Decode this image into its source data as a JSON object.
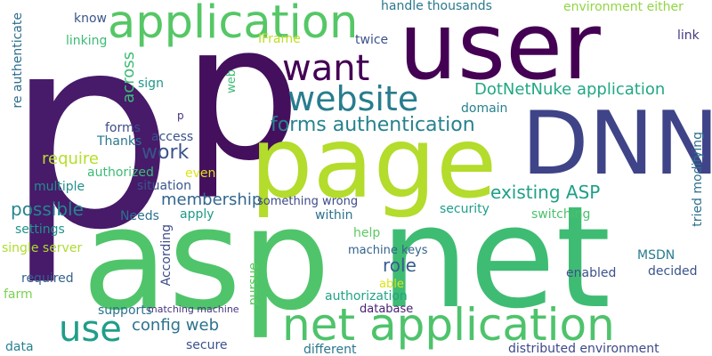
{
  "words": [
    {
      "text": "p",
      "color": "#471a6a"
    },
    {
      "text": "p",
      "color": "#440f5d"
    },
    {
      "text": "user",
      "color": "#440154"
    },
    {
      "text": "DNN",
      "color": "#3f4488"
    },
    {
      "text": "page",
      "color": "#b3dc2c"
    },
    {
      "text": "asp",
      "color": "#50c46a"
    },
    {
      "text": "net",
      "color": "#3fbc73"
    },
    {
      "text": "application",
      "color": "#55c766"
    },
    {
      "text": "net application",
      "color": "#4ec36b"
    },
    {
      "text": "want",
      "color": "#440154"
    },
    {
      "text": "website",
      "color": "#287d8e"
    },
    {
      "text": "use",
      "color": "#1f9e89"
    },
    {
      "text": "forms authentication",
      "color": "#26828e"
    },
    {
      "text": "DotNetNuke application",
      "color": "#22a884"
    },
    {
      "text": "existing ASP",
      "color": "#1fa088"
    },
    {
      "text": "membership",
      "color": "#31668e"
    },
    {
      "text": "possible",
      "color": "#25858e"
    },
    {
      "text": "work",
      "color": "#3b528b"
    },
    {
      "text": "require",
      "color": "#b5de2b"
    },
    {
      "text": "role",
      "color": "#365c8d"
    },
    {
      "text": "config web",
      "color": "#2c728e"
    },
    {
      "text": "across",
      "color": "#3dbc74"
    },
    {
      "text": "access",
      "color": "#3b528b"
    },
    {
      "text": "security",
      "color": "#1f9e89"
    },
    {
      "text": "switching",
      "color": "#4ac16d"
    },
    {
      "text": "tried modifying",
      "color": "#2d708e"
    },
    {
      "text": "handle thousands",
      "color": "#29798e"
    },
    {
      "text": "environment either",
      "color": "#90d743"
    },
    {
      "text": "know",
      "color": "#39558c"
    },
    {
      "text": "linking",
      "color": "#3cbb75"
    },
    {
      "text": "IFrame",
      "color": "#bddf26"
    },
    {
      "text": "twice",
      "color": "#3b528b"
    },
    {
      "text": "link",
      "color": "#453882"
    },
    {
      "text": "re authenticate",
      "color": "#2e6e8e"
    },
    {
      "text": "sign",
      "color": "#1f968b"
    },
    {
      "text": "web",
      "color": "#3dbc74"
    },
    {
      "text": "domain",
      "color": "#26828e"
    },
    {
      "text": "p",
      "color": "#46327e"
    },
    {
      "text": "forms",
      "color": "#3e4c8a"
    },
    {
      "text": "Thanks",
      "color": "#2a778e"
    },
    {
      "text": "authorized",
      "color": "#3cbb75"
    },
    {
      "text": "even",
      "color": "#dde318"
    },
    {
      "text": "multiple",
      "color": "#21908d"
    },
    {
      "text": "situation",
      "color": "#39568c"
    },
    {
      "text": "something wrong",
      "color": "#3e4989"
    },
    {
      "text": "within",
      "color": "#2c728e"
    },
    {
      "text": "Needs",
      "color": "#2d708e"
    },
    {
      "text": "apply",
      "color": "#1f9a8a"
    },
    {
      "text": "According",
      "color": "#3e4c8a"
    },
    {
      "text": "settings",
      "color": "#1f958b"
    },
    {
      "text": "help",
      "color": "#5ec962"
    },
    {
      "text": "single server",
      "color": "#addc30"
    },
    {
      "text": "machine keys",
      "color": "#33628d"
    },
    {
      "text": "MSDN",
      "color": "#287c8e"
    },
    {
      "text": "pursue",
      "color": "#5ec962"
    },
    {
      "text": "able",
      "color": "#dde318"
    },
    {
      "text": "required",
      "color": "#33638d"
    },
    {
      "text": "enabled",
      "color": "#3b528b"
    },
    {
      "text": "decided",
      "color": "#3a548c"
    },
    {
      "text": "farm",
      "color": "#7ad151"
    },
    {
      "text": "authorization",
      "color": "#20a386"
    },
    {
      "text": "supports",
      "color": "#2c718e"
    },
    {
      "text": "matching machine",
      "color": "#46337f"
    },
    {
      "text": "database",
      "color": "#482173"
    },
    {
      "text": "data",
      "color": "#26818e"
    },
    {
      "text": "secure",
      "color": "#3b528b"
    },
    {
      "text": "different",
      "color": "#2a788e"
    },
    {
      "text": "distributed environment",
      "color": "#3e4989"
    }
  ]
}
